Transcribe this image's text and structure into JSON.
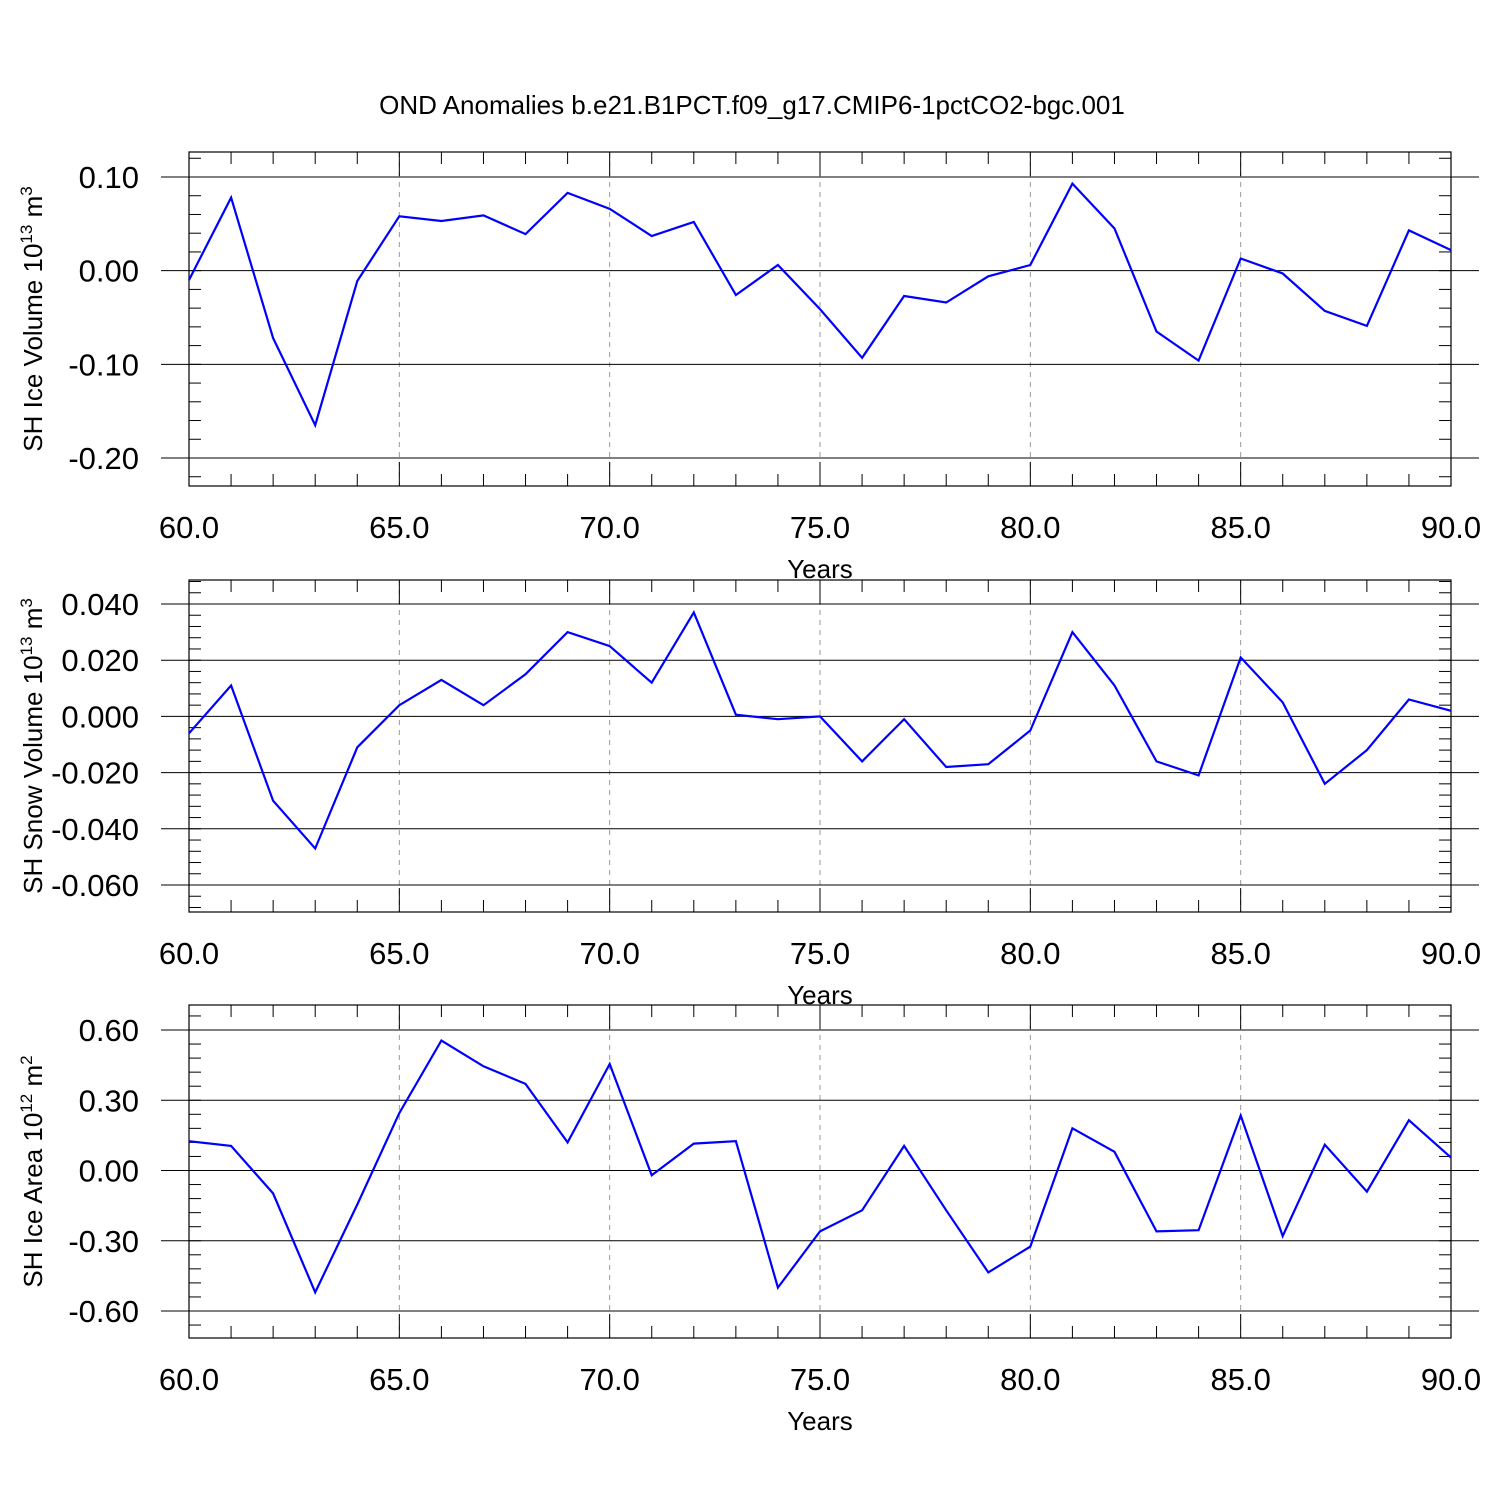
{
  "title": "OND Anomalies b.e21.B1PCT.f09_g17.CMIP6-1pctCO2-bgc.001",
  "colors": {
    "line": "#0000ff",
    "axis": "#000000",
    "grid": "#999999"
  },
  "chart_data": [
    {
      "type": "line",
      "title": "",
      "xlabel": "Years",
      "ylabel": {
        "prefix": "SH Ice Volume 10",
        "exponent": "13",
        "unit": " m",
        "unit_exponent": "3"
      },
      "xlim": [
        60,
        90
      ],
      "ylim": [
        -0.2,
        0.1
      ],
      "x_ticks": [
        "60.0",
        "65.0",
        "70.0",
        "75.0",
        "80.0",
        "85.0",
        "90.0"
      ],
      "y_ticks": [
        "0.10",
        "0.00",
        "-0.10",
        "-0.20"
      ],
      "x_grid": true,
      "x": [
        60,
        61,
        62,
        63,
        64,
        65,
        66,
        67,
        68,
        69,
        70,
        71,
        72,
        73,
        74,
        75,
        76,
        77,
        78,
        79,
        80,
        81,
        82,
        83,
        84,
        85,
        86,
        87,
        88,
        89,
        90
      ],
      "series": [
        {
          "values": [
            -0.01,
            0.078,
            -0.072,
            -0.165,
            -0.011,
            0.058,
            0.053,
            0.059,
            0.039,
            0.083,
            0.066,
            0.037,
            0.052,
            -0.026,
            0.006,
            -0.041,
            -0.093,
            -0.027,
            -0.034,
            -0.006,
            0.006,
            0.093,
            0.045,
            -0.065,
            -0.096,
            0.013,
            -0.003,
            -0.043,
            -0.059,
            0.043,
            0.022
          ]
        }
      ]
    },
    {
      "type": "line",
      "title": "",
      "xlabel": "Years",
      "ylabel": {
        "prefix": "SH Snow Volume 10",
        "exponent": "13",
        "unit": " m",
        "unit_exponent": "3"
      },
      "xlim": [
        60,
        90
      ],
      "ylim": [
        -0.06,
        0.04
      ],
      "x_ticks": [
        "60.0",
        "65.0",
        "70.0",
        "75.0",
        "80.0",
        "85.0",
        "90.0"
      ],
      "y_ticks": [
        "0.040",
        "0.020",
        "0.000",
        "-0.020",
        "-0.040",
        "-0.060"
      ],
      "x_grid": true,
      "x": [
        60,
        61,
        62,
        63,
        64,
        65,
        66,
        67,
        68,
        69,
        70,
        71,
        72,
        73,
        74,
        75,
        76,
        77,
        78,
        79,
        80,
        81,
        82,
        83,
        84,
        85,
        86,
        87,
        88,
        89,
        90
      ],
      "series": [
        {
          "values": [
            -0.006,
            0.011,
            -0.03,
            -0.047,
            -0.011,
            0.004,
            0.013,
            0.004,
            0.015,
            0.03,
            0.025,
            0.012,
            0.037,
            0.0006,
            -0.001,
            0.0,
            -0.016,
            -0.001,
            -0.018,
            -0.017,
            -0.005,
            0.03,
            0.011,
            -0.016,
            -0.021,
            0.021,
            0.005,
            -0.024,
            -0.012,
            0.006,
            0.002
          ]
        }
      ]
    },
    {
      "type": "line",
      "title": "",
      "xlabel": "Years",
      "ylabel": {
        "prefix": "SH Ice Area 10",
        "exponent": "12",
        "unit": " m",
        "unit_exponent": "2"
      },
      "xlim": [
        60,
        90
      ],
      "ylim": [
        -0.6,
        0.6
      ],
      "x_ticks": [
        "60.0",
        "65.0",
        "70.0",
        "75.0",
        "80.0",
        "85.0",
        "90.0"
      ],
      "y_ticks": [
        "0.60",
        "0.30",
        "0.00",
        "-0.30",
        "-0.60"
      ],
      "x_grid": true,
      "x": [
        60,
        61,
        62,
        63,
        64,
        65,
        66,
        67,
        68,
        69,
        70,
        71,
        72,
        73,
        74,
        75,
        76,
        77,
        78,
        79,
        80,
        81,
        82,
        83,
        84,
        85,
        86,
        87,
        88,
        89,
        90
      ],
      "series": [
        {
          "values": [
            0.125,
            0.105,
            -0.098,
            -0.52,
            -0.145,
            0.245,
            0.555,
            0.445,
            0.37,
            0.12,
            0.455,
            -0.02,
            0.115,
            0.125,
            -0.5,
            -0.26,
            -0.17,
            0.105,
            -0.17,
            -0.435,
            -0.325,
            0.18,
            0.08,
            -0.26,
            -0.255,
            0.235,
            -0.28,
            0.11,
            -0.09,
            0.215,
            0.055
          ]
        }
      ]
    }
  ]
}
